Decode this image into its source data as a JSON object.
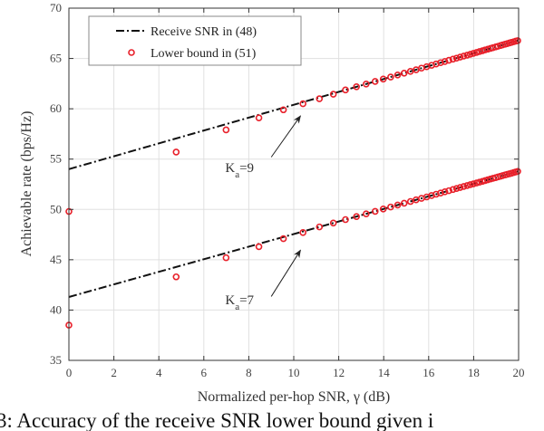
{
  "chart_data": {
    "type": "line",
    "title": "",
    "xlabel": "Normalized per-hop SNR, γ (dB)",
    "ylabel": "Achievable rate (bps/Hz)",
    "xlim": [
      0,
      20
    ],
    "ylim": [
      35,
      70
    ],
    "xticks": [
      "0",
      "2",
      "4",
      "6",
      "8",
      "10",
      "12",
      "14",
      "16",
      "18",
      "20"
    ],
    "yticks": [
      "35",
      "40",
      "45",
      "50",
      "55",
      "60",
      "65",
      "70"
    ],
    "grid": true,
    "legend": {
      "placement": "top-left",
      "entries": [
        "Receive SNR in (48)",
        "Lower bound in (51)"
      ]
    },
    "colors": {
      "line": "#111111",
      "marker": "#e8202a",
      "grid": "#e0e0e0"
    },
    "marker_x": [
      0,
      4.77,
      6.99,
      8.45,
      9.54,
      10.41,
      11.14,
      11.76,
      12.3,
      12.79,
      13.22,
      13.62,
      13.98,
      14.31,
      14.62,
      14.91,
      15.19,
      15.44,
      15.68,
      15.91,
      16.13,
      16.33,
      16.53,
      16.72,
      16.9,
      17.08,
      17.24,
      17.4,
      17.56,
      17.71,
      17.85,
      17.99,
      18.13,
      18.26,
      18.39,
      18.51,
      18.63,
      18.75,
      18.86,
      18.98,
      19.08,
      19.19,
      19.29,
      19.4,
      19.49,
      19.59,
      19.68,
      19.78,
      19.87,
      19.96
    ],
    "series": [
      {
        "name": "Receive SNR in (48)",
        "group": "Ka=9",
        "style": "dashdot",
        "x": [
          0,
          20
        ],
        "y": [
          54.0,
          66.8
        ]
      },
      {
        "name": "Lower bound in (51)",
        "group": "Ka=9",
        "style": "circle",
        "y": [
          49.8,
          55.7,
          57.9,
          59.1,
          59.9,
          60.5,
          61.0,
          61.45,
          61.87,
          62.19,
          62.46,
          62.72,
          62.95,
          63.16,
          63.36,
          63.54,
          63.72,
          63.88,
          64.04,
          64.18,
          64.32,
          64.45,
          64.58,
          64.7,
          64.82,
          64.93,
          65.03,
          65.14,
          65.24,
          65.33,
          65.42,
          65.51,
          65.6,
          65.69,
          65.77,
          65.85,
          65.92,
          66.0,
          66.07,
          66.15,
          66.21,
          66.28,
          66.35,
          66.42,
          66.47,
          66.54,
          66.6,
          66.66,
          66.72,
          66.77
        ]
      },
      {
        "name": "Receive SNR in (48)",
        "group": "Ka=7",
        "style": "dashdot",
        "x": [
          0,
          20
        ],
        "y": [
          41.3,
          53.8
        ]
      },
      {
        "name": "Lower bound in (51)",
        "group": "Ka=7",
        "style": "circle",
        "y": [
          38.5,
          43.3,
          45.2,
          46.3,
          47.1,
          47.7,
          48.26,
          48.65,
          48.99,
          49.29,
          49.56,
          49.81,
          50.04,
          50.24,
          50.44,
          50.62,
          50.79,
          50.95,
          51.1,
          51.24,
          51.38,
          51.51,
          51.63,
          51.75,
          51.86,
          51.98,
          52.08,
          52.18,
          52.28,
          52.37,
          52.46,
          52.54,
          52.63,
          52.71,
          52.79,
          52.87,
          52.94,
          53.02,
          53.09,
          53.16,
          53.23,
          53.29,
          53.36,
          53.43,
          53.48,
          53.54,
          53.6,
          53.66,
          53.72,
          53.78
        ]
      }
    ],
    "annotations": [
      {
        "text_main": "K",
        "text_sub": "a",
        "text_rest": "=9",
        "at": [
          6.95,
          53.7
        ],
        "arrow_from": [
          9.0,
          55.2
        ],
        "arrow_to": [
          10.3,
          59.3
        ]
      },
      {
        "text_main": "K",
        "text_sub": "a",
        "text_rest": "=7",
        "at": [
          6.95,
          40.6
        ],
        "arrow_from": [
          9.0,
          41.35
        ],
        "arrow_to": [
          10.3,
          45.95
        ]
      }
    ]
  },
  "caption": "3: Accuracy of the receive SNR lower bound given i"
}
